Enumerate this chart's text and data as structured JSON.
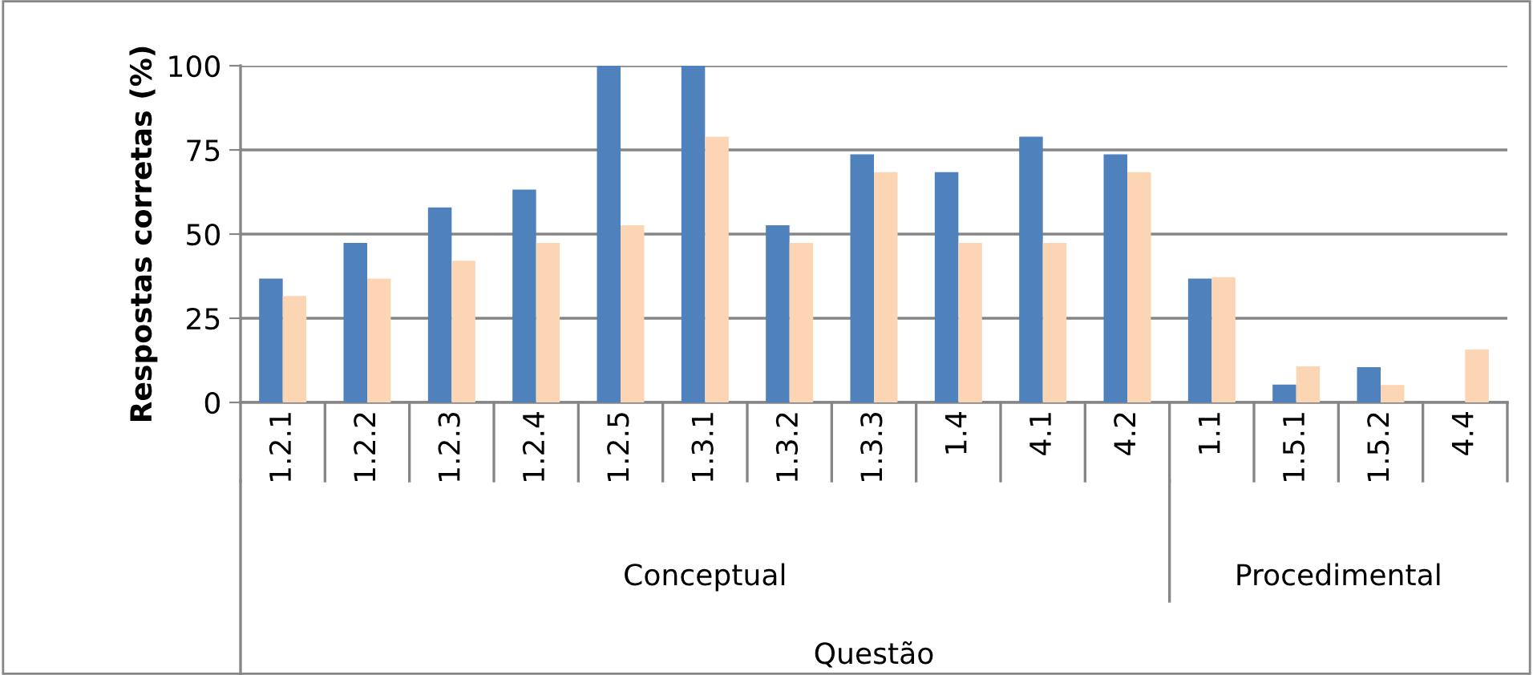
{
  "chart_data": {
    "type": "bar",
    "categories": [
      "1.2.1",
      "1.2.2",
      "1.2.3",
      "1.2.4",
      "1.2.5",
      "1.3.1",
      "1.3.2",
      "1.3.3",
      "1.4",
      "4.1",
      "4.2",
      "1.1",
      "1.5.1",
      "1.5.2",
      "4.4"
    ],
    "series": [
      {
        "color": "#4f81bd",
        "values": [
          36.8,
          47.4,
          57.9,
          63.2,
          100,
          100,
          52.6,
          73.7,
          68.4,
          78.9,
          73.7,
          36.8,
          5.3,
          10.5,
          0
        ]
      },
      {
        "color": "#fcd5b4",
        "values": [
          31.6,
          36.8,
          42.1,
          47.4,
          52.6,
          78.9,
          47.4,
          68.4,
          47.4,
          47.4,
          68.4,
          37.2,
          10.7,
          5.2,
          15.7
        ]
      }
    ],
    "ylabel": "Respostas corretas (%)",
    "annotations": [
      "Conceptual",
      "Procedimental",
      "Questão"
    ],
    "ylim": [
      0,
      100
    ],
    "yticks": [
      0,
      25,
      50,
      75,
      100
    ],
    "grid": "y"
  }
}
